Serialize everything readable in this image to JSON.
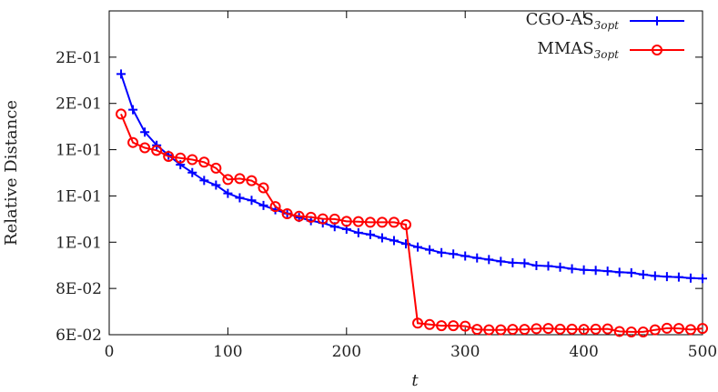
{
  "chart_data": {
    "type": "line",
    "xlabel": "t",
    "ylabel": "Relative Distance",
    "xlim": [
      0,
      500
    ],
    "ylim": [
      0.06,
      0.2
    ],
    "x_ticks": [
      0,
      100,
      200,
      300,
      400,
      500
    ],
    "x_tick_labels": [
      "0",
      "100",
      "200",
      "300",
      "400",
      "500"
    ],
    "y_ticks": [
      0.06,
      0.08,
      0.1,
      0.12,
      0.14,
      0.16,
      0.18
    ],
    "y_tick_labels": [
      "6E-02",
      "8E-02",
      "1E-01",
      "1E-01",
      "1E-01",
      "2E-01",
      "2E-01"
    ],
    "grid": false,
    "legend_position": "top-right",
    "series": [
      {
        "name": "CGO-AS",
        "name_sub": "3opt",
        "color": "#0000ff",
        "marker": "plus",
        "x": [
          10,
          20,
          30,
          40,
          50,
          60,
          70,
          80,
          90,
          100,
          110,
          120,
          130,
          140,
          150,
          160,
          170,
          180,
          190,
          200,
          210,
          220,
          230,
          240,
          250,
          260,
          270,
          280,
          290,
          300,
          310,
          320,
          330,
          340,
          350,
          360,
          370,
          380,
          390,
          400,
          410,
          420,
          430,
          440,
          450,
          460,
          470,
          480,
          490,
          500
        ],
        "y": [
          0.1727,
          0.1573,
          0.1476,
          0.1419,
          0.1376,
          0.1335,
          0.1301,
          0.1267,
          0.1247,
          0.1211,
          0.1192,
          0.1181,
          0.1159,
          0.114,
          0.1124,
          0.1107,
          0.1093,
          0.1083,
          0.1067,
          0.1056,
          0.1041,
          0.1033,
          0.1019,
          0.1007,
          0.0993,
          0.0979,
          0.0967,
          0.0955,
          0.0949,
          0.094,
          0.0932,
          0.0925,
          0.0917,
          0.0911,
          0.0909,
          0.0899,
          0.0897,
          0.0892,
          0.0885,
          0.088,
          0.0878,
          0.0875,
          0.087,
          0.0868,
          0.086,
          0.0854,
          0.0851,
          0.0849,
          0.0845,
          0.0843
        ]
      },
      {
        "name": "MMAS",
        "name_sub": "3opt",
        "color": "#ff0000",
        "marker": "circle",
        "x": [
          10,
          20,
          30,
          40,
          50,
          60,
          70,
          80,
          90,
          100,
          110,
          120,
          130,
          140,
          150,
          160,
          170,
          180,
          190,
          200,
          210,
          220,
          230,
          240,
          250,
          260,
          270,
          280,
          290,
          300,
          310,
          320,
          330,
          340,
          350,
          360,
          370,
          380,
          390,
          400,
          410,
          420,
          430,
          440,
          450,
          460,
          470,
          480,
          490,
          500
        ],
        "y": [
          0.1554,
          0.1431,
          0.1408,
          0.1397,
          0.1371,
          0.1364,
          0.1357,
          0.1346,
          0.132,
          0.1271,
          0.1275,
          0.1266,
          0.1235,
          0.1154,
          0.1123,
          0.1112,
          0.1108,
          0.1101,
          0.11,
          0.109,
          0.1089,
          0.1086,
          0.1086,
          0.1086,
          0.1076,
          0.065,
          0.0644,
          0.0639,
          0.0639,
          0.0637,
          0.0623,
          0.0621,
          0.0621,
          0.0623,
          0.0623,
          0.0626,
          0.0627,
          0.0624,
          0.0624,
          0.0623,
          0.0624,
          0.0625,
          0.0614,
          0.0612,
          0.0612,
          0.0621,
          0.0628,
          0.0627,
          0.0622,
          0.0627
        ]
      }
    ]
  }
}
